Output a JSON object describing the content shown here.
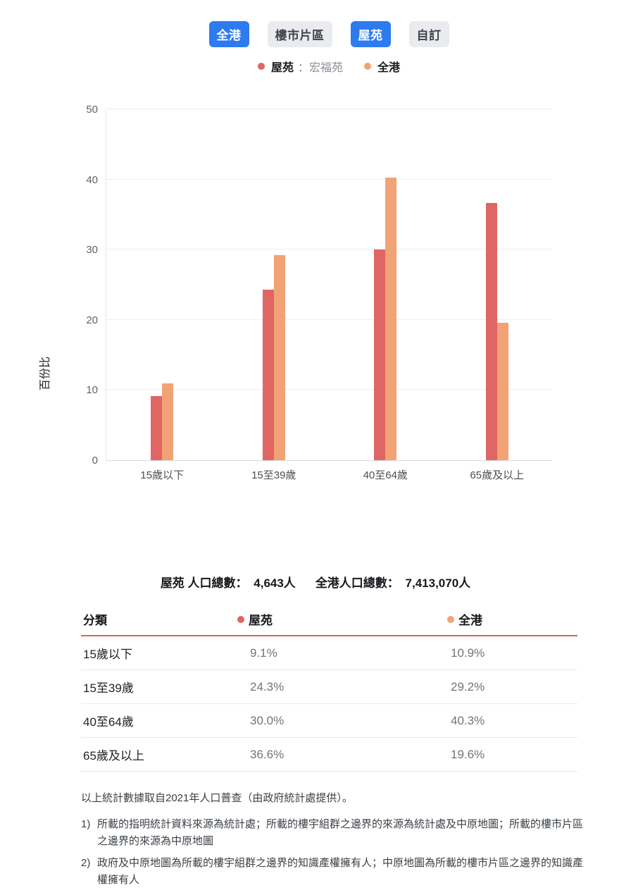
{
  "tabs": [
    {
      "label": "全港",
      "active": true
    },
    {
      "label": "樓市片區",
      "active": false
    },
    {
      "label": "屋苑",
      "active": true
    },
    {
      "label": "自訂",
      "active": false
    }
  ],
  "legend": {
    "series1_label": "屋苑",
    "series1_sub": "：宏福苑",
    "series2_label": "全港"
  },
  "colors": {
    "tab_active_bg": "#2e7bf0",
    "estate_series": "#df6663",
    "hk_series": "#f2a376",
    "header_rule": "#e15d5b"
  },
  "chart_data": {
    "type": "bar",
    "categories": [
      "15歲以下",
      "15至39歲",
      "40至64歲",
      "65歲及以上"
    ],
    "series": [
      {
        "name": "屋苑",
        "color": "#df6663",
        "values": [
          9.1,
          24.3,
          30.0,
          36.6
        ]
      },
      {
        "name": "全港",
        "color": "#f2a376",
        "values": [
          10.9,
          29.2,
          40.3,
          19.6
        ]
      }
    ],
    "title": "",
    "xlabel": "",
    "ylabel": "百份比",
    "ylim": [
      0,
      50
    ],
    "yticks": [
      0,
      10,
      20,
      30,
      40,
      50
    ],
    "grid": true,
    "legend_position": "top"
  },
  "totals": {
    "estate_label": "屋苑 人口總數：",
    "estate_value": " 4,643人",
    "hk_label": "全港人口總數：",
    "hk_value": " 7,413,070人"
  },
  "table": {
    "headers": [
      "分類",
      "屋苑",
      "全港"
    ],
    "rows": [
      {
        "label": "15歲以下",
        "estate": "9.1%",
        "hk": "10.9%"
      },
      {
        "label": "15至39歲",
        "estate": "24.3%",
        "hk": "29.2%"
      },
      {
        "label": "40至64歲",
        "estate": "30.0%",
        "hk": "40.3%"
      },
      {
        "label": "65歲及以上",
        "estate": "36.6%",
        "hk": "19.6%"
      }
    ]
  },
  "notes": {
    "source": "以上統計數據取自2021年人口普查（由政府統計處提供）。",
    "items": [
      {
        "num": "1)",
        "text": "所載的指明統計資料來源為統計處；所載的樓宇組群之邊界的來源為統計處及中原地圖；所載的樓市片區之邊界的來源為中原地圖"
      },
      {
        "num": "2)",
        "text": "政府及中原地圖為所載的樓宇組群之邊界的知識產權擁有人；中原地圖為所載的樓市片區之邊界的知識產權擁有人"
      }
    ]
  }
}
